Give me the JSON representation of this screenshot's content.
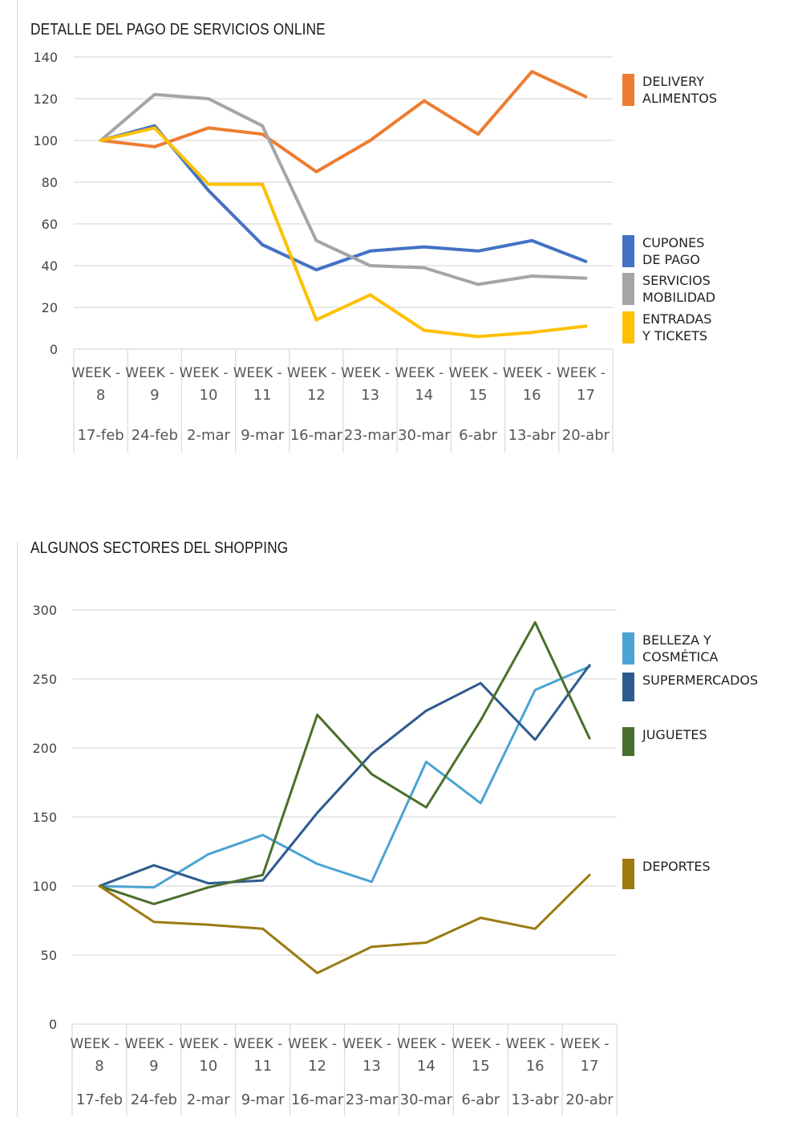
{
  "chart_data": [
    {
      "type": "line",
      "title": "DETALLE DEL PAGO DE SERVICIOS ONLINE",
      "x_week_labels": [
        "WEEK - 8",
        "WEEK - 9",
        "WEEK - 10",
        "WEEK - 11",
        "WEEK - 12",
        "WEEK - 13",
        "WEEK - 14",
        "WEEK - 15",
        "WEEK - 16",
        "WEEK - 17"
      ],
      "x_date_labels": [
        "17-feb",
        "24-feb",
        "2-mar",
        "9-mar",
        "16-mar",
        "23-mar",
        "30-mar",
        "6-abr",
        "13-abr",
        "20-abr"
      ],
      "ylim": [
        0,
        140
      ],
      "y_ticks": [
        "0",
        "20",
        "40",
        "60",
        "80",
        "100",
        "120",
        "140"
      ],
      "grid": true,
      "legend_position": "right",
      "series": [
        {
          "name_lines": [
            "DELIVERY",
            "ALIMENTOS"
          ],
          "color": "#ED7D31",
          "values": [
            100,
            97,
            106,
            103,
            85,
            100,
            119,
            103,
            133,
            121
          ]
        },
        {
          "name_lines": [
            "CUPONES",
            "DE PAGO"
          ],
          "color": "#4472C4",
          "values": [
            100,
            107,
            76,
            50,
            38,
            47,
            49,
            47,
            52,
            42
          ]
        },
        {
          "name_lines": [
            "SERVICIOS",
            "MOBILIDAD"
          ],
          "color": "#A5A5A5",
          "values": [
            100,
            122,
            120,
            107,
            52,
            40,
            39,
            31,
            35,
            34
          ]
        },
        {
          "name_lines": [
            "ENTRADAS",
            "Y TICKETS"
          ],
          "color": "#FFC000",
          "values": [
            100,
            106,
            79,
            79,
            14,
            26,
            9,
            6,
            8,
            11
          ]
        }
      ]
    },
    {
      "type": "line",
      "title": "ALGUNOS SECTORES DEL SHOPPING",
      "x_week_labels": [
        "WEEK - 8",
        "WEEK - 9",
        "WEEK - 10",
        "WEEK - 11",
        "WEEK - 12",
        "WEEK - 13",
        "WEEK - 14",
        "WEEK - 15",
        "WEEK - 16",
        "WEEK - 17"
      ],
      "x_date_labels": [
        "17-feb",
        "24-feb",
        "2-mar",
        "9-mar",
        "16-mar",
        "23-mar",
        "30-mar",
        "6-abr",
        "13-abr",
        "20-abr"
      ],
      "ylim": [
        0,
        300
      ],
      "y_ticks": [
        "0",
        "50",
        "100",
        "150",
        "200",
        "250",
        "300"
      ],
      "grid": true,
      "legend_position": "right",
      "series": [
        {
          "name_lines": [
            "BELLEZA Y",
            "COSMÉTICA"
          ],
          "color": "#4BA3D3",
          "values": [
            100,
            99,
            123,
            137,
            116,
            103,
            190,
            160,
            242,
            259
          ]
        },
        {
          "name_lines": [
            "SUPERMERCADOS"
          ],
          "color": "#2E5B8E",
          "values": [
            100,
            115,
            102,
            104,
            153,
            196,
            227,
            247,
            206,
            260
          ]
        },
        {
          "name_lines": [
            "JUGUETES"
          ],
          "color": "#4A6F2C",
          "values": [
            100,
            87,
            99,
            108,
            224,
            181,
            157,
            220,
            291,
            207
          ]
        },
        {
          "name_lines": [
            "DEPORTES"
          ],
          "color": "#9C7A10",
          "values": [
            100,
            74,
            72,
            69,
            37,
            56,
            59,
            77,
            69,
            108
          ]
        }
      ]
    }
  ]
}
